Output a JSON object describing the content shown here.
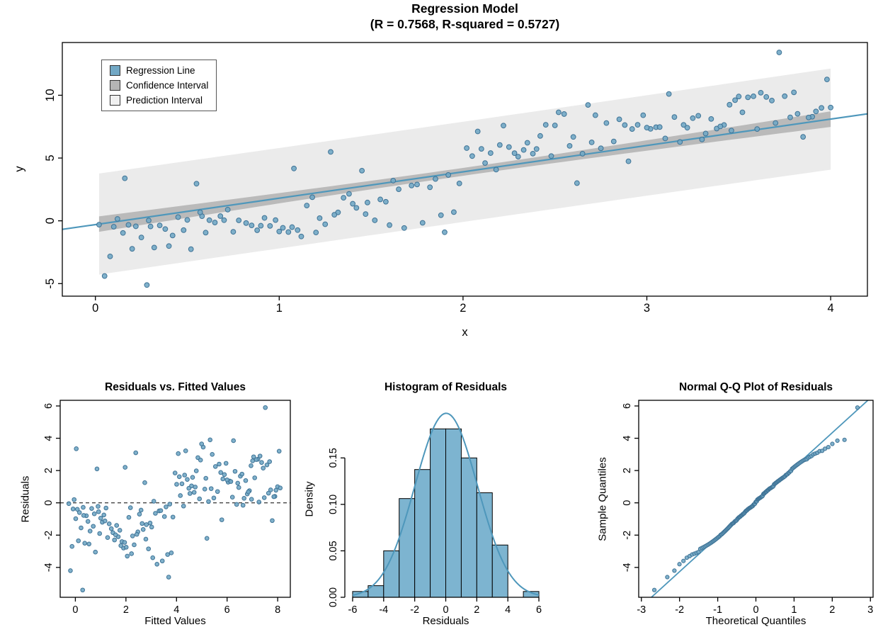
{
  "figure": {
    "background": "#ffffff",
    "axis_color": "#000000",
    "point_color": "#72a8c5",
    "point_stroke": "#3f7396",
    "line_color": "#4e97bb",
    "conf_color": "#b5b5b5",
    "pred_color": "#e9e9e9",
    "hist_fill": "#7db4d0"
  },
  "chart_data": [
    {
      "id": "regression",
      "type": "scatter",
      "title": "Regression Model",
      "subtitle": "(R = 0.7568, R-squared = 0.5727)",
      "xlabel": "x",
      "ylabel": "y",
      "xlim": [
        -0.18,
        4.2
      ],
      "ylim": [
        -6.0,
        14.2
      ],
      "xticks": [
        0,
        1,
        2,
        3,
        4
      ],
      "xtick_labels": [
        "0",
        "1",
        "2",
        "3",
        "4"
      ],
      "yticks": [
        -5,
        0,
        5,
        10
      ],
      "ytick_labels": [
        "-5",
        "0",
        "5",
        "10"
      ],
      "grid": false,
      "legend_position": "topleft",
      "legend": [
        {
          "label": "Regression Line",
          "color": "#72a8c5"
        },
        {
          "label": "Confidence Interval",
          "color": "#b5b5b5"
        },
        {
          "label": "Prediction Interval",
          "color": "#f0f0f0"
        }
      ],
      "stats": {
        "r": 0.7568,
        "r_squared": 0.5727
      },
      "model": {
        "intercept": -0.3,
        "slope": 2.1
      },
      "note": "points_x_residual holds [x, residual]; y = intercept + slope*x + residual; same residuals drive the three diagnostic panels",
      "points_x_residual": [
        [
          0.02,
          -0.05
        ],
        [
          2.33,
          1.05
        ],
        [
          0.95,
          -2.1
        ],
        [
          3.6,
          0.05
        ],
        [
          1.28,
          3.1
        ],
        [
          2.9,
          -1.05
        ],
        [
          0.55,
          2.1
        ],
        [
          3.18,
          -0.1
        ],
        [
          1.62,
          0.1
        ],
        [
          3.98,
          3.2
        ],
        [
          0.28,
          -5.4
        ],
        [
          2.05,
          1.15
        ],
        [
          3.3,
          -0.15
        ],
        [
          0.72,
          -0.32
        ],
        [
          2.62,
          -2.2
        ],
        [
          1.45,
          1.25
        ],
        [
          3.85,
          -1.1
        ],
        [
          0.12,
          0.2
        ],
        [
          2.18,
          -0.2
        ],
        [
          1.08,
          2.2
        ],
        [
          3.72,
          5.9
        ],
        [
          0.38,
          -1.15
        ],
        [
          2.48,
          0.25
        ],
        [
          1.85,
          -0.25
        ],
        [
          3.05,
          1.35
        ],
        [
          0.88,
          -2.3
        ],
        [
          2.75,
          0.3
        ],
        [
          1.18,
          -0.3
        ],
        [
          3.45,
          2.3
        ],
        [
          0.65,
          -1.2
        ],
        [
          1.95,
          -3.1
        ],
        [
          3.1,
          0.35
        ],
        [
          0.45,
          -0.35
        ],
        [
          2.25,
          1.45
        ],
        [
          1.55,
          -1.25
        ],
        [
          3.9,
          0.4
        ],
        [
          0.18,
          -0.4
        ],
        [
          2.85,
          2.4
        ],
        [
          1.02,
          -2.4
        ],
        [
          3.52,
          1.55
        ],
        [
          0.05,
          -4.2
        ],
        [
          2.12,
          0.45
        ],
        [
          1.38,
          -0.45
        ],
        [
          3.25,
          1.65
        ],
        [
          0.78,
          -1.3
        ],
        [
          2.55,
          3.45
        ],
        [
          1.72,
          -0.5
        ],
        [
          3.65,
          2.5
        ],
        [
          0.32,
          -2.5
        ],
        [
          2.95,
          1.75
        ],
        [
          1.12,
          -3.3
        ],
        [
          3.38,
          0.55
        ],
        [
          0.58,
          -0.55
        ],
        [
          2.02,
          1.85
        ],
        [
          1.48,
          -1.35
        ],
        [
          3.78,
          0.6
        ],
        [
          0.22,
          -0.6
        ],
        [
          2.68,
          3.9
        ],
        [
          1.25,
          -2.6
        ],
        [
          3.48,
          2.6
        ],
        [
          0.92,
          -1.4
        ],
        [
          2.38,
          0.65
        ],
        [
          1.65,
          -0.65
        ],
        [
          3.15,
          1.95
        ],
        [
          0.48,
          -1.45
        ],
        [
          2.82,
          0.7
        ],
        [
          1.35,
          -0.7
        ],
        [
          3.58,
          2.7
        ],
        [
          0.08,
          -2.7
        ],
        [
          2.22,
          3.22
        ],
        [
          1.78,
          -3.6
        ],
        [
          3.42,
          0.75
        ],
        [
          0.68,
          -0.75
        ],
        [
          2.15,
          1.18
        ],
        [
          1.58,
          -1.5
        ],
        [
          3.82,
          0.8
        ],
        [
          0.35,
          -0.8
        ],
        [
          2.45,
          2.8
        ],
        [
          1.05,
          -2.8
        ],
        [
          3.02,
          1.28
        ],
        [
          0.25,
          -1.55
        ],
        [
          2.58,
          0.85
        ],
        [
          1.82,
          -0.85
        ],
        [
          3.35,
          1.38
        ],
        [
          0.82,
          -1.6
        ],
        [
          2.28,
          0.9
        ],
        [
          1.15,
          -0.9
        ],
        [
          3.62,
          2.9
        ],
        [
          0.52,
          -3.05
        ],
        [
          2.92,
          1.48
        ],
        [
          1.88,
          -3.2
        ],
        [
          3.22,
          0.95
        ],
        [
          0.62,
          -0.95
        ],
        [
          2.35,
          1.58
        ],
        [
          1.42,
          -1.65
        ],
        [
          3.95,
          1.0
        ],
        [
          0.15,
          -0.98
        ],
        [
          2.72,
          3.0
        ],
        [
          1.22,
          -2.05
        ],
        [
          3.55,
          2.68
        ],
        [
          0.98,
          -1.7
        ],
        [
          2.65,
          0.08
        ],
        [
          1.92,
          -0.08
        ],
        [
          3.28,
          1.78
        ],
        [
          0.42,
          -1.75
        ],
        [
          2.08,
          3.05
        ],
        [
          1.52,
          -2.85
        ],
        [
          3.68,
          2.15
        ],
        [
          0.75,
          -2.15
        ],
        [
          2.88,
          1.88
        ],
        [
          1.68,
          -3.8
        ],
        [
          3.32,
          0.28
        ],
        [
          0.29,
          -0.28
        ],
        [
          2.42,
          1.98
        ],
        [
          1.32,
          -1.8
        ],
        [
          3.88,
          0.38
        ],
        [
          0.1,
          -0.38
        ],
        [
          2.78,
          2.25
        ],
        [
          1.47,
          -2.25
        ],
        [
          3.12,
          3.85
        ],
        [
          0.85,
          -1.85
        ],
        [
          2.52,
          3.65
        ],
        [
          1.75,
          -0.48
        ],
        [
          3.07,
          1.32
        ],
        [
          0.6,
          -1.9
        ],
        [
          2.3,
          0.58
        ],
        [
          1.1,
          -2.75
        ],
        [
          3.75,
          2.35
        ],
        [
          0.2,
          -2.35
        ],
        [
          2.6,
          1.52
        ],
        [
          1.6,
          -3.4
        ],
        [
          3.4,
          0.68
        ],
        [
          0.5,
          -0.68
        ],
        [
          2.2,
          1.72
        ],
        [
          1.3,
          -1.95
        ],
        [
          3.92,
          0.78
        ],
        [
          0.3,
          -0.78
        ],
        [
          2.98,
          2.45
        ],
        [
          1.07,
          -2.45
        ],
        [
          3.5,
          2.85
        ],
        [
          0.9,
          -1.98
        ],
        [
          2.7,
          0.88
        ],
        [
          1.98,
          -0.88
        ],
        [
          3.2,
          1.22
        ],
        [
          0.7,
          -1.12
        ],
        [
          2.4,
          0.98
        ],
        [
          1.2,
          -3.15
        ],
        [
          3.8,
          2.55
        ],
        [
          0.4,
          -2.55
        ],
        [
          3.0,
          1.42
        ],
        [
          1.9,
          -4.6
        ],
        [
          3.46,
          0.22
        ],
        [
          0.57,
          -0.22
        ],
        [
          2.1,
          1.62
        ],
        [
          1.4,
          -1.28
        ],
        [
          3.7,
          0.32
        ],
        [
          0.16,
          3.35
        ],
        [
          2.5,
          2.65
        ],
        [
          1.0,
          -2.65
        ],
        [
          4.0,
          0.92
        ]
      ]
    },
    {
      "id": "residuals_vs_fitted",
      "type": "scatter",
      "title": "Residuals vs. Fitted Values",
      "xlabel": "Fitted Values",
      "ylabel": "Residuals",
      "xlim": [
        -0.6,
        8.5
      ],
      "ylim": [
        -5.85,
        6.35
      ],
      "xticks": [
        0,
        2,
        4,
        6,
        8
      ],
      "xtick_labels": [
        "0",
        "2",
        "4",
        "6",
        "8"
      ],
      "yticks": [
        -4,
        -2,
        0,
        2,
        4,
        6
      ],
      "ytick_labels": [
        "-4",
        "-2",
        "0",
        "2",
        "4",
        "6"
      ],
      "zero_line": 0,
      "grid": false
    },
    {
      "id": "residual_histogram",
      "type": "histogram",
      "title": "Histogram of Residuals",
      "xlabel": "Residuals",
      "ylabel": "Density",
      "xlim": [
        -6.5,
        6.5
      ],
      "ylim": [
        0,
        0.212
      ],
      "breaks": [
        -6,
        -5,
        -4,
        -3,
        -2,
        -1,
        0,
        1,
        2,
        3,
        4,
        5,
        6
      ],
      "bin_width": 1,
      "xticks": [
        -6,
        -4,
        -2,
        0,
        2,
        4,
        6
      ],
      "xtick_labels": [
        "-6",
        "-4",
        "-2",
        "0",
        "2",
        "4",
        "6"
      ],
      "yticks": [
        0,
        0.05,
        0.1,
        0.15
      ],
      "ytick_labels": [
        "0.00",
        "0.05",
        "0.10",
        "0.15"
      ],
      "curve": "normal-density",
      "grid": false
    },
    {
      "id": "qq_plot",
      "type": "scatter",
      "title": "Normal Q-Q Plot of Residuals",
      "xlabel": "Theoretical Quantiles",
      "ylabel": "Sample Quantiles",
      "xlim": [
        -3.07,
        3.07
      ],
      "ylim": [
        -5.85,
        6.35
      ],
      "xticks": [
        -3,
        -2,
        -1,
        0,
        1,
        2,
        3
      ],
      "xtick_labels": [
        "-3",
        "-2",
        "-1",
        "0",
        "1",
        "2",
        "3"
      ],
      "yticks": [
        -4,
        -2,
        0,
        2,
        4,
        6
      ],
      "ytick_labels": [
        "-4",
        "-2",
        "0",
        "2",
        "4",
        "6"
      ],
      "reference_line": "qqline-through-quartiles",
      "grid": false
    }
  ]
}
